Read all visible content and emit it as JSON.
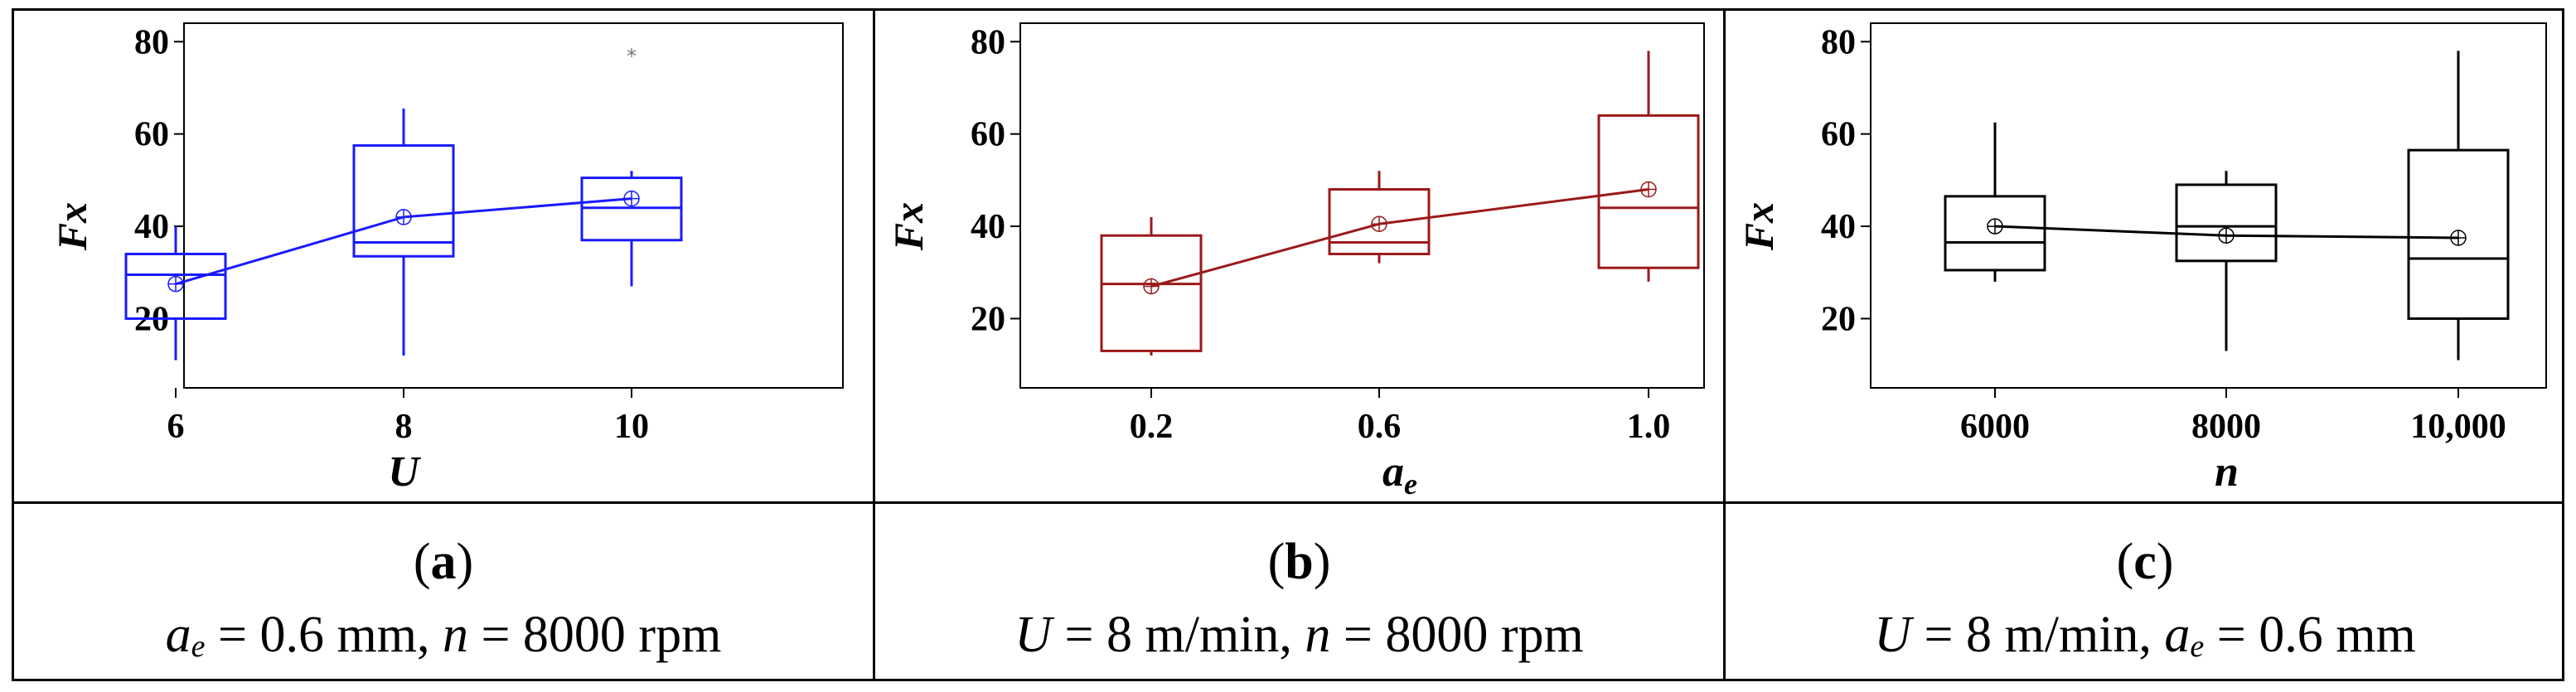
{
  "panels": [
    {
      "letter": "a",
      "condition": {
        "var1": "a",
        "var1_sub": "e",
        "rest1": " = 0.6 mm, ",
        "var2": "n",
        "rest2": " = 8000 rpm"
      },
      "color": "#1a1aff"
    },
    {
      "letter": "b",
      "condition": {
        "var1": "U",
        "var1_sub": "",
        "rest1": " = 8 m/min, ",
        "var2": "n",
        "rest2": " = 8000 rpm"
      },
      "color": "#9b1a1a"
    },
    {
      "letter": "c",
      "condition": {
        "var1": "U",
        "var1_sub": "",
        "rest1": " = 8 m/min, ",
        "var2": "a",
        "var2_sub": "e",
        "rest2": " = 0.6 mm"
      },
      "color": "#000000"
    }
  ],
  "chart_data": [
    {
      "type": "box",
      "ylabel": "Fx",
      "xlabel": "U",
      "xlabel_sub": "",
      "ylim": [
        5,
        84
      ],
      "yticks": [
        20,
        40,
        60,
        80
      ],
      "categories": [
        "6",
        "8",
        "10"
      ],
      "boxes": [
        {
          "min": 11,
          "q1": 20,
          "median": 29.5,
          "q3": 34,
          "max": 40,
          "mean": 27.5
        },
        {
          "min": 12,
          "q1": 33.5,
          "median": 36.5,
          "q3": 57.5,
          "max": 65.5,
          "mean": 42
        },
        {
          "min": 27,
          "q1": 37,
          "median": 44,
          "q3": 50.5,
          "max": 52,
          "mean": 46
        }
      ],
      "outliers": [
        {
          "category": "10",
          "value": 77.5,
          "marker": "*"
        }
      ],
      "mean_line": true
    },
    {
      "type": "box",
      "ylabel": "Fx",
      "xlabel": "a",
      "xlabel_sub": "e",
      "ylim": [
        5,
        84
      ],
      "yticks": [
        20,
        40,
        60,
        80
      ],
      "categories": [
        "0.2",
        "0.6",
        "1.0"
      ],
      "boxes": [
        {
          "min": 12,
          "q1": 13,
          "median": 27.5,
          "q3": 38,
          "max": 42,
          "mean": 27
        },
        {
          "min": 32,
          "q1": 34,
          "median": 36.5,
          "q3": 48,
          "max": 52,
          "mean": 40.5
        },
        {
          "min": 28,
          "q1": 31,
          "median": 44,
          "q3": 64,
          "max": 78,
          "mean": 48
        }
      ],
      "outliers": [],
      "mean_line": true
    },
    {
      "type": "box",
      "ylabel": "Fx",
      "xlabel": "n",
      "xlabel_sub": "",
      "ylim": [
        5,
        84
      ],
      "yticks": [
        20,
        40,
        60,
        80
      ],
      "categories": [
        "6000",
        "8000",
        "10,000"
      ],
      "boxes": [
        {
          "min": 28,
          "q1": 30.5,
          "median": 36.5,
          "q3": 46.5,
          "max": 62.5,
          "mean": 40
        },
        {
          "min": 13,
          "q1": 32.5,
          "median": 40,
          "q3": 49,
          "max": 52,
          "mean": 38
        },
        {
          "min": 11,
          "q1": 20,
          "median": 33,
          "q3": 56.5,
          "max": 78,
          "mean": 37.5
        }
      ],
      "outliers": [],
      "mean_line": true
    }
  ]
}
